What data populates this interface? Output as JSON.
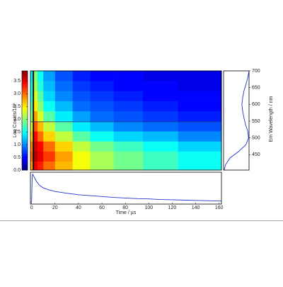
{
  "chart_data": [
    {
      "type": "heatmap",
      "x": [
        -1,
        2,
        5,
        10,
        20,
        35,
        50,
        70,
        95,
        125
      ],
      "y": [
        404,
        430,
        460,
        490,
        520,
        550,
        580,
        610,
        640,
        670
      ],
      "xlim": [
        -1,
        162
      ],
      "ylim": [
        404,
        700
      ],
      "z": [
        [
          2.8,
          3.5,
          3.3,
          3.0,
          2.7,
          2.4,
          2.1,
          1.9,
          1.7,
          1.5
        ],
        [
          3.0,
          3.7,
          3.5,
          3.2,
          2.8,
          2.4,
          2.1,
          1.9,
          1.7,
          1.5
        ],
        [
          2.9,
          3.6,
          3.4,
          3.0,
          2.6,
          2.2,
          1.9,
          1.7,
          1.5,
          1.3
        ],
        [
          2.6,
          3.4,
          3.0,
          2.6,
          2.2,
          1.8,
          1.5,
          1.3,
          1.2,
          1.0
        ],
        [
          2.3,
          3.1,
          2.7,
          2.2,
          1.8,
          1.4,
          1.2,
          1.0,
          0.9,
          0.8
        ],
        [
          2.0,
          2.8,
          2.3,
          1.8,
          1.4,
          1.1,
          0.9,
          0.8,
          0.7,
          0.6
        ],
        [
          1.8,
          2.5,
          2.0,
          1.5,
          1.2,
          0.9,
          0.8,
          0.7,
          0.6,
          0.5
        ],
        [
          1.6,
          2.3,
          1.8,
          1.3,
          1.0,
          0.8,
          0.7,
          0.6,
          0.5,
          0.5
        ],
        [
          1.5,
          2.1,
          1.6,
          1.2,
          0.9,
          0.7,
          0.6,
          0.5,
          0.5,
          0.4
        ],
        [
          1.4,
          2.0,
          1.5,
          1.1,
          0.8,
          0.6,
          0.5,
          0.5,
          0.4,
          0.4
        ]
      ],
      "clim": [
        0,
        3.9
      ],
      "cticks": [
        {
          "value": 0,
          "label": "0.0"
        },
        0.5,
        {
          "value": 1,
          "label": "1.0"
        },
        1.5,
        {
          "value": 2,
          "label": "2.0"
        },
        2.5,
        {
          "value": 3,
          "label": "3.0"
        },
        3.5
      ],
      "clabel": "Log Counts/10³",
      "colormap": "jet",
      "cursor_time": 1.5,
      "cursor_wavelength": 548,
      "cursor_color": "#1a237e"
    },
    {
      "type": "spectrum",
      "wavelength": [
        404,
        420,
        440,
        460,
        480,
        500,
        520,
        540,
        560,
        580,
        600,
        620,
        640,
        660,
        680,
        700
      ],
      "values": [
        0.02,
        0.08,
        0.25,
        0.6,
        0.88,
        0.98,
        0.95,
        0.86,
        0.8,
        0.75,
        0.72,
        0.75,
        0.8,
        0.88,
        0.95,
        1.0
      ],
      "xlim": [
        0,
        1
      ],
      "ylim": [
        404,
        700
      ],
      "yticks": [
        450,
        500,
        550,
        600,
        650,
        700
      ],
      "ylabel": "Em Wavelength / nm",
      "color": "#2233cc"
    },
    {
      "type": "decay",
      "x": [
        -1,
        0,
        0.5,
        1,
        2,
        4,
        6,
        8,
        10,
        15,
        20,
        25,
        30,
        40,
        50,
        60,
        70,
        80,
        90,
        100,
        110,
        120,
        130,
        140,
        150,
        160,
        162
      ],
      "values": [
        0.02,
        0.05,
        0.9,
        0.98,
        0.9,
        0.75,
        0.64,
        0.57,
        0.52,
        0.45,
        0.4,
        0.37,
        0.34,
        0.29,
        0.26,
        0.23,
        0.2,
        0.18,
        0.16,
        0.15,
        0.13,
        0.12,
        0.11,
        0.1,
        0.09,
        0.08,
        0.08
      ],
      "xlim": [
        -1,
        162
      ],
      "ylim": [
        0,
        1
      ],
      "xticks": [
        0,
        20,
        40,
        60,
        80,
        100,
        120,
        140,
        160
      ],
      "xlabel": "Time / µs",
      "color": "#2233cc"
    }
  ]
}
